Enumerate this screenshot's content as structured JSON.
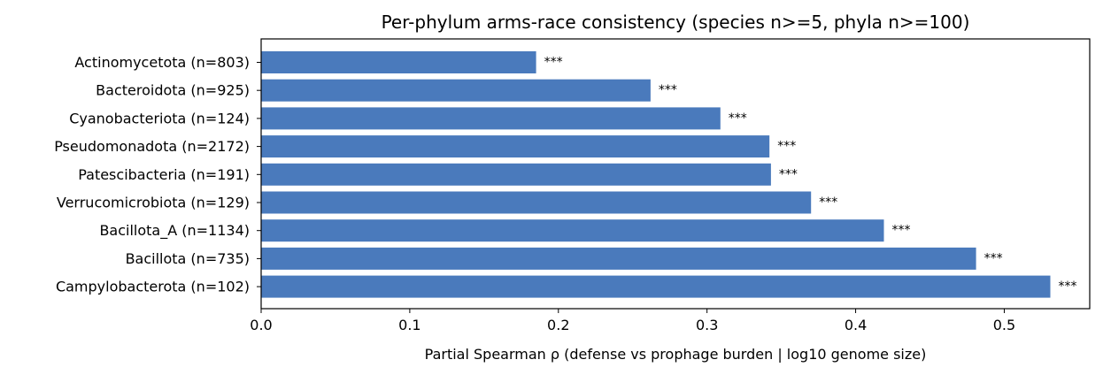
{
  "chart_data": {
    "type": "bar",
    "orientation": "horizontal",
    "title": "Per-phylum arms-race consistency (species n>=5, phyla n>=100)",
    "xlabel": "Partial Spearman ρ (defense vs prophage burden | log10 genome size)",
    "ylabel": "",
    "xlim": [
      0,
      0.5575
    ],
    "xticks": [
      "0.0",
      "0.1",
      "0.2",
      "0.3",
      "0.4",
      "0.5"
    ],
    "grid": false,
    "bar_color": "#4a7abc",
    "categories": [
      "Actinomycetota (n=803)",
      "Bacteroidota (n=925)",
      "Cyanobacteriota (n=124)",
      "Pseudomonadota (n=2172)",
      "Patescibacteria (n=191)",
      "Verrucomicrobiota (n=129)",
      "Bacillota_A (n=1134)",
      "Bacillota (n=735)",
      "Campylobacterota (n=102)"
    ],
    "values": [
      0.185,
      0.262,
      0.309,
      0.342,
      0.343,
      0.37,
      0.419,
      0.481,
      0.531
    ],
    "annotations": [
      "***",
      "***",
      "***",
      "***",
      "***",
      "***",
      "***",
      "***",
      "***"
    ]
  }
}
